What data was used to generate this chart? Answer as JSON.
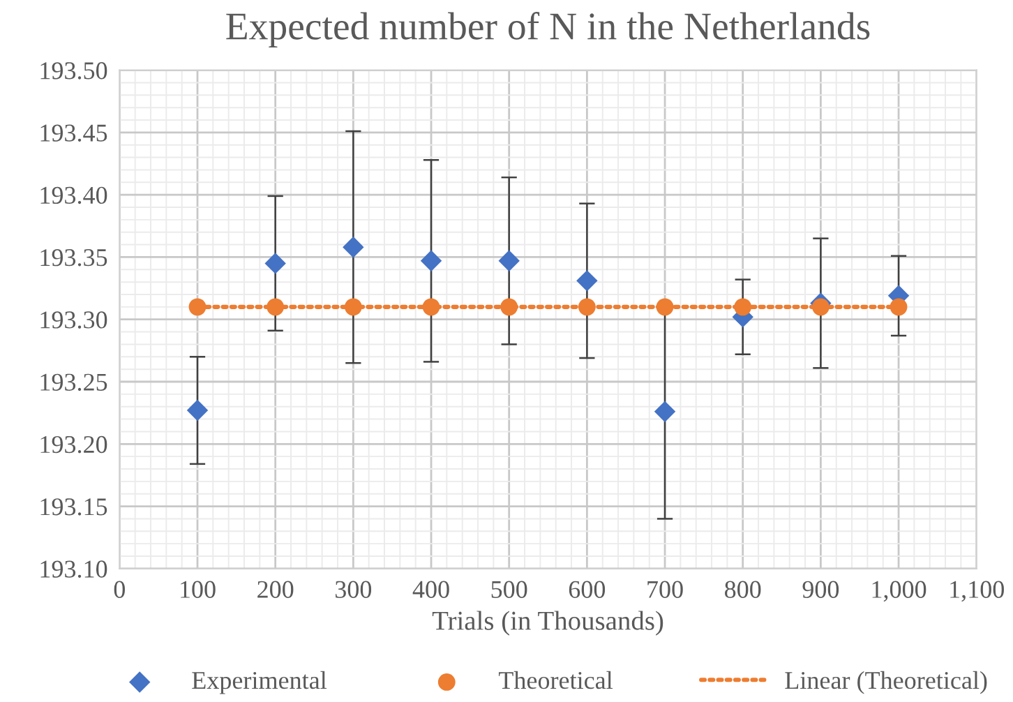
{
  "chart_data": {
    "type": "scatter",
    "title": "Expected number of N in the Netherlands",
    "xlabel": "Trials (in Thousands)",
    "x": [
      100,
      200,
      300,
      400,
      500,
      600,
      700,
      800,
      900,
      1000
    ],
    "series": [
      {
        "name": "Experimental",
        "marker": "diamond",
        "color": "#4472c4",
        "values": [
          193.227,
          193.345,
          193.358,
          193.347,
          193.347,
          193.331,
          193.226,
          193.302,
          193.313,
          193.319
        ],
        "errors": [
          0.043,
          0.054,
          0.093,
          0.081,
          0.067,
          0.062,
          0.086,
          0.03,
          0.052,
          0.032
        ]
      },
      {
        "name": "Theoretical",
        "marker": "circle",
        "color": "#ed7d31",
        "values": [
          193.31,
          193.31,
          193.31,
          193.31,
          193.31,
          193.31,
          193.31,
          193.31,
          193.31,
          193.31
        ]
      },
      {
        "name": "Linear (Theoretical)",
        "type": "line",
        "line_style": "dotted",
        "marker": "none",
        "color": "#ed7d31",
        "x": [
          100,
          1000
        ],
        "values": [
          193.31,
          193.31
        ]
      }
    ],
    "xlim": [
      0,
      1100
    ],
    "ylim": [
      193.1,
      193.5
    ],
    "xticks": [
      0,
      100,
      200,
      300,
      400,
      500,
      600,
      700,
      800,
      900,
      {
        "value": 1000,
        "label": "1,000"
      },
      {
        "value": 1100,
        "label": "1,100"
      }
    ],
    "yticks": [
      {
        "value": 193.1,
        "label": "193.10"
      },
      {
        "value": 193.15,
        "label": "193.15"
      },
      {
        "value": 193.2,
        "label": "193.20"
      },
      {
        "value": 193.25,
        "label": "193.25"
      },
      {
        "value": 193.3,
        "label": "193.30"
      },
      {
        "value": 193.35,
        "label": "193.35"
      },
      {
        "value": 193.4,
        "label": "193.40"
      },
      {
        "value": 193.45,
        "label": "193.45"
      },
      {
        "value": 193.5,
        "label": "193.50"
      }
    ],
    "grid": true,
    "legend": "bottom"
  }
}
